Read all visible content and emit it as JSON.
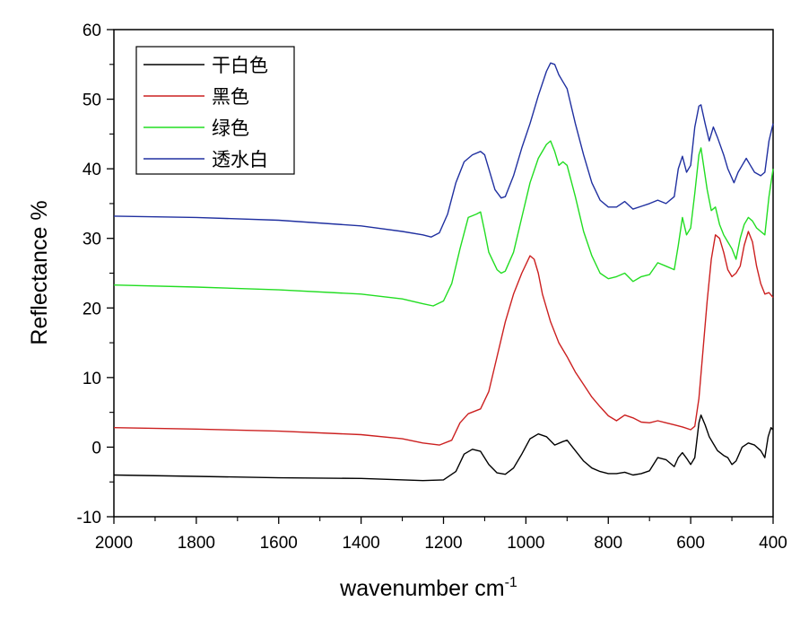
{
  "chart_data": {
    "type": "line",
    "xlabel": "wavenumber cm",
    "xlabel_sup": "-1",
    "ylabel": "Reflectance %",
    "xlim": [
      2000,
      400
    ],
    "ylim": [
      -10,
      60
    ],
    "x_ticks": [
      "2000",
      "1800",
      "1600",
      "1400",
      "1200",
      "1000",
      "800",
      "600",
      "400"
    ],
    "y_ticks": [
      "-10",
      "0",
      "10",
      "20",
      "30",
      "40",
      "50",
      "60"
    ],
    "grid": false,
    "legend_position": "top-left",
    "series": [
      {
        "name": "干白色",
        "color": "#000000",
        "points": [
          [
            2000,
            -4.0
          ],
          [
            1800,
            -4.2
          ],
          [
            1600,
            -4.4
          ],
          [
            1400,
            -4.5
          ],
          [
            1250,
            -4.8
          ],
          [
            1200,
            -4.7
          ],
          [
            1170,
            -3.5
          ],
          [
            1150,
            -1.0
          ],
          [
            1130,
            -0.3
          ],
          [
            1110,
            -0.6
          ],
          [
            1090,
            -2.5
          ],
          [
            1070,
            -3.7
          ],
          [
            1050,
            -3.9
          ],
          [
            1030,
            -3.0
          ],
          [
            1010,
            -1.0
          ],
          [
            990,
            1.2
          ],
          [
            970,
            1.9
          ],
          [
            950,
            1.5
          ],
          [
            930,
            0.3
          ],
          [
            910,
            0.8
          ],
          [
            900,
            1.0
          ],
          [
            880,
            -0.5
          ],
          [
            860,
            -2.0
          ],
          [
            840,
            -3.0
          ],
          [
            820,
            -3.5
          ],
          [
            800,
            -3.8
          ],
          [
            780,
            -3.8
          ],
          [
            760,
            -3.6
          ],
          [
            740,
            -4.0
          ],
          [
            720,
            -3.8
          ],
          [
            700,
            -3.4
          ],
          [
            680,
            -1.5
          ],
          [
            660,
            -1.8
          ],
          [
            640,
            -2.8
          ],
          [
            630,
            -1.5
          ],
          [
            620,
            -0.8
          ],
          [
            610,
            -1.6
          ],
          [
            600,
            -2.5
          ],
          [
            590,
            -1.5
          ],
          [
            580,
            3.5
          ],
          [
            575,
            4.6
          ],
          [
            565,
            3.2
          ],
          [
            555,
            1.5
          ],
          [
            545,
            0.5
          ],
          [
            535,
            -0.5
          ],
          [
            520,
            -1.2
          ],
          [
            510,
            -1.5
          ],
          [
            500,
            -2.5
          ],
          [
            490,
            -2.0
          ],
          [
            475,
            0.0
          ],
          [
            460,
            0.6
          ],
          [
            445,
            0.3
          ],
          [
            430,
            -0.5
          ],
          [
            420,
            -1.5
          ],
          [
            412,
            1.5
          ],
          [
            405,
            2.8
          ],
          [
            400,
            2.5
          ]
        ]
      },
      {
        "name": "黑色",
        "color": "#cc2020",
        "points": [
          [
            2000,
            2.8
          ],
          [
            1800,
            2.6
          ],
          [
            1600,
            2.3
          ],
          [
            1400,
            1.8
          ],
          [
            1300,
            1.2
          ],
          [
            1250,
            0.6
          ],
          [
            1210,
            0.3
          ],
          [
            1180,
            1.0
          ],
          [
            1160,
            3.5
          ],
          [
            1140,
            4.8
          ],
          [
            1110,
            5.5
          ],
          [
            1090,
            8.0
          ],
          [
            1070,
            13.0
          ],
          [
            1050,
            18.0
          ],
          [
            1030,
            22.0
          ],
          [
            1010,
            25.0
          ],
          [
            990,
            27.5
          ],
          [
            980,
            27.0
          ],
          [
            970,
            25.0
          ],
          [
            960,
            22.0
          ],
          [
            940,
            18.0
          ],
          [
            920,
            15.0
          ],
          [
            900,
            13.0
          ],
          [
            880,
            10.8
          ],
          [
            860,
            9.0
          ],
          [
            840,
            7.2
          ],
          [
            820,
            5.8
          ],
          [
            800,
            4.5
          ],
          [
            780,
            3.8
          ],
          [
            760,
            4.6
          ],
          [
            740,
            4.2
          ],
          [
            720,
            3.6
          ],
          [
            700,
            3.5
          ],
          [
            680,
            3.8
          ],
          [
            660,
            3.5
          ],
          [
            640,
            3.2
          ],
          [
            620,
            2.9
          ],
          [
            600,
            2.5
          ],
          [
            590,
            3.0
          ],
          [
            580,
            7.0
          ],
          [
            570,
            14.0
          ],
          [
            560,
            21.0
          ],
          [
            550,
            27.0
          ],
          [
            540,
            30.5
          ],
          [
            530,
            30.0
          ],
          [
            520,
            28.0
          ],
          [
            510,
            25.5
          ],
          [
            500,
            24.5
          ],
          [
            490,
            25.0
          ],
          [
            480,
            26.0
          ],
          [
            470,
            29.0
          ],
          [
            460,
            31.0
          ],
          [
            450,
            29.5
          ],
          [
            440,
            26.0
          ],
          [
            430,
            23.5
          ],
          [
            420,
            22.0
          ],
          [
            410,
            22.2
          ],
          [
            400,
            21.5
          ]
        ]
      },
      {
        "name": "绿色",
        "color": "#22dd22",
        "points": [
          [
            2000,
            23.3
          ],
          [
            1800,
            23.0
          ],
          [
            1600,
            22.6
          ],
          [
            1400,
            22.0
          ],
          [
            1300,
            21.3
          ],
          [
            1250,
            20.6
          ],
          [
            1225,
            20.3
          ],
          [
            1200,
            21.0
          ],
          [
            1180,
            23.5
          ],
          [
            1160,
            28.5
          ],
          [
            1140,
            33.0
          ],
          [
            1120,
            33.5
          ],
          [
            1110,
            33.8
          ],
          [
            1100,
            31.0
          ],
          [
            1090,
            28.0
          ],
          [
            1070,
            25.5
          ],
          [
            1060,
            25.0
          ],
          [
            1050,
            25.3
          ],
          [
            1030,
            28.0
          ],
          [
            1010,
            33.0
          ],
          [
            990,
            38.0
          ],
          [
            970,
            41.5
          ],
          [
            950,
            43.5
          ],
          [
            940,
            44.0
          ],
          [
            930,
            42.5
          ],
          [
            920,
            40.5
          ],
          [
            910,
            41.0
          ],
          [
            900,
            40.5
          ],
          [
            880,
            36.0
          ],
          [
            860,
            31.0
          ],
          [
            840,
            27.5
          ],
          [
            820,
            25.0
          ],
          [
            800,
            24.2
          ],
          [
            780,
            24.5
          ],
          [
            760,
            25.0
          ],
          [
            740,
            23.8
          ],
          [
            720,
            24.5
          ],
          [
            700,
            24.8
          ],
          [
            680,
            26.5
          ],
          [
            660,
            26.0
          ],
          [
            640,
            25.5
          ],
          [
            630,
            29.0
          ],
          [
            620,
            33.0
          ],
          [
            610,
            30.5
          ],
          [
            600,
            31.5
          ],
          [
            590,
            36.5
          ],
          [
            580,
            42.0
          ],
          [
            575,
            43.0
          ],
          [
            570,
            41.0
          ],
          [
            560,
            37.0
          ],
          [
            550,
            34.0
          ],
          [
            540,
            34.5
          ],
          [
            530,
            32.0
          ],
          [
            520,
            30.5
          ],
          [
            510,
            29.5
          ],
          [
            500,
            28.5
          ],
          [
            490,
            27.0
          ],
          [
            480,
            30.0
          ],
          [
            470,
            32.0
          ],
          [
            460,
            33.0
          ],
          [
            450,
            32.5
          ],
          [
            440,
            31.5
          ],
          [
            430,
            31.0
          ],
          [
            420,
            30.5
          ],
          [
            410,
            36.0
          ],
          [
            400,
            40.0
          ]
        ]
      },
      {
        "name": "透水白",
        "color": "#2030a0",
        "points": [
          [
            2000,
            33.2
          ],
          [
            1800,
            33.0
          ],
          [
            1600,
            32.6
          ],
          [
            1400,
            31.8
          ],
          [
            1300,
            31.0
          ],
          [
            1250,
            30.5
          ],
          [
            1230,
            30.2
          ],
          [
            1210,
            30.8
          ],
          [
            1190,
            33.5
          ],
          [
            1170,
            38.0
          ],
          [
            1150,
            41.0
          ],
          [
            1130,
            42.0
          ],
          [
            1110,
            42.5
          ],
          [
            1100,
            42.0
          ],
          [
            1090,
            40.0
          ],
          [
            1075,
            37.0
          ],
          [
            1060,
            35.8
          ],
          [
            1050,
            36.0
          ],
          [
            1030,
            39.0
          ],
          [
            1010,
            43.0
          ],
          [
            990,
            46.5
          ],
          [
            970,
            50.5
          ],
          [
            950,
            54.0
          ],
          [
            940,
            55.2
          ],
          [
            930,
            55.0
          ],
          [
            920,
            53.5
          ],
          [
            910,
            52.5
          ],
          [
            900,
            51.5
          ],
          [
            880,
            46.5
          ],
          [
            860,
            42.0
          ],
          [
            840,
            38.0
          ],
          [
            820,
            35.5
          ],
          [
            800,
            34.5
          ],
          [
            780,
            34.5
          ],
          [
            760,
            35.3
          ],
          [
            740,
            34.2
          ],
          [
            720,
            34.6
          ],
          [
            700,
            35.0
          ],
          [
            680,
            35.5
          ],
          [
            660,
            35.0
          ],
          [
            640,
            36.0
          ],
          [
            630,
            40.0
          ],
          [
            620,
            41.8
          ],
          [
            610,
            39.5
          ],
          [
            600,
            40.5
          ],
          [
            590,
            46.0
          ],
          [
            580,
            49.0
          ],
          [
            575,
            49.2
          ],
          [
            565,
            46.5
          ],
          [
            555,
            44.0
          ],
          [
            545,
            46.0
          ],
          [
            535,
            44.5
          ],
          [
            520,
            42.0
          ],
          [
            510,
            40.0
          ],
          [
            495,
            38.0
          ],
          [
            485,
            39.5
          ],
          [
            475,
            40.5
          ],
          [
            465,
            41.5
          ],
          [
            455,
            40.5
          ],
          [
            445,
            39.5
          ],
          [
            430,
            39.0
          ],
          [
            420,
            39.5
          ],
          [
            410,
            44.0
          ],
          [
            400,
            46.5
          ]
        ]
      }
    ]
  }
}
